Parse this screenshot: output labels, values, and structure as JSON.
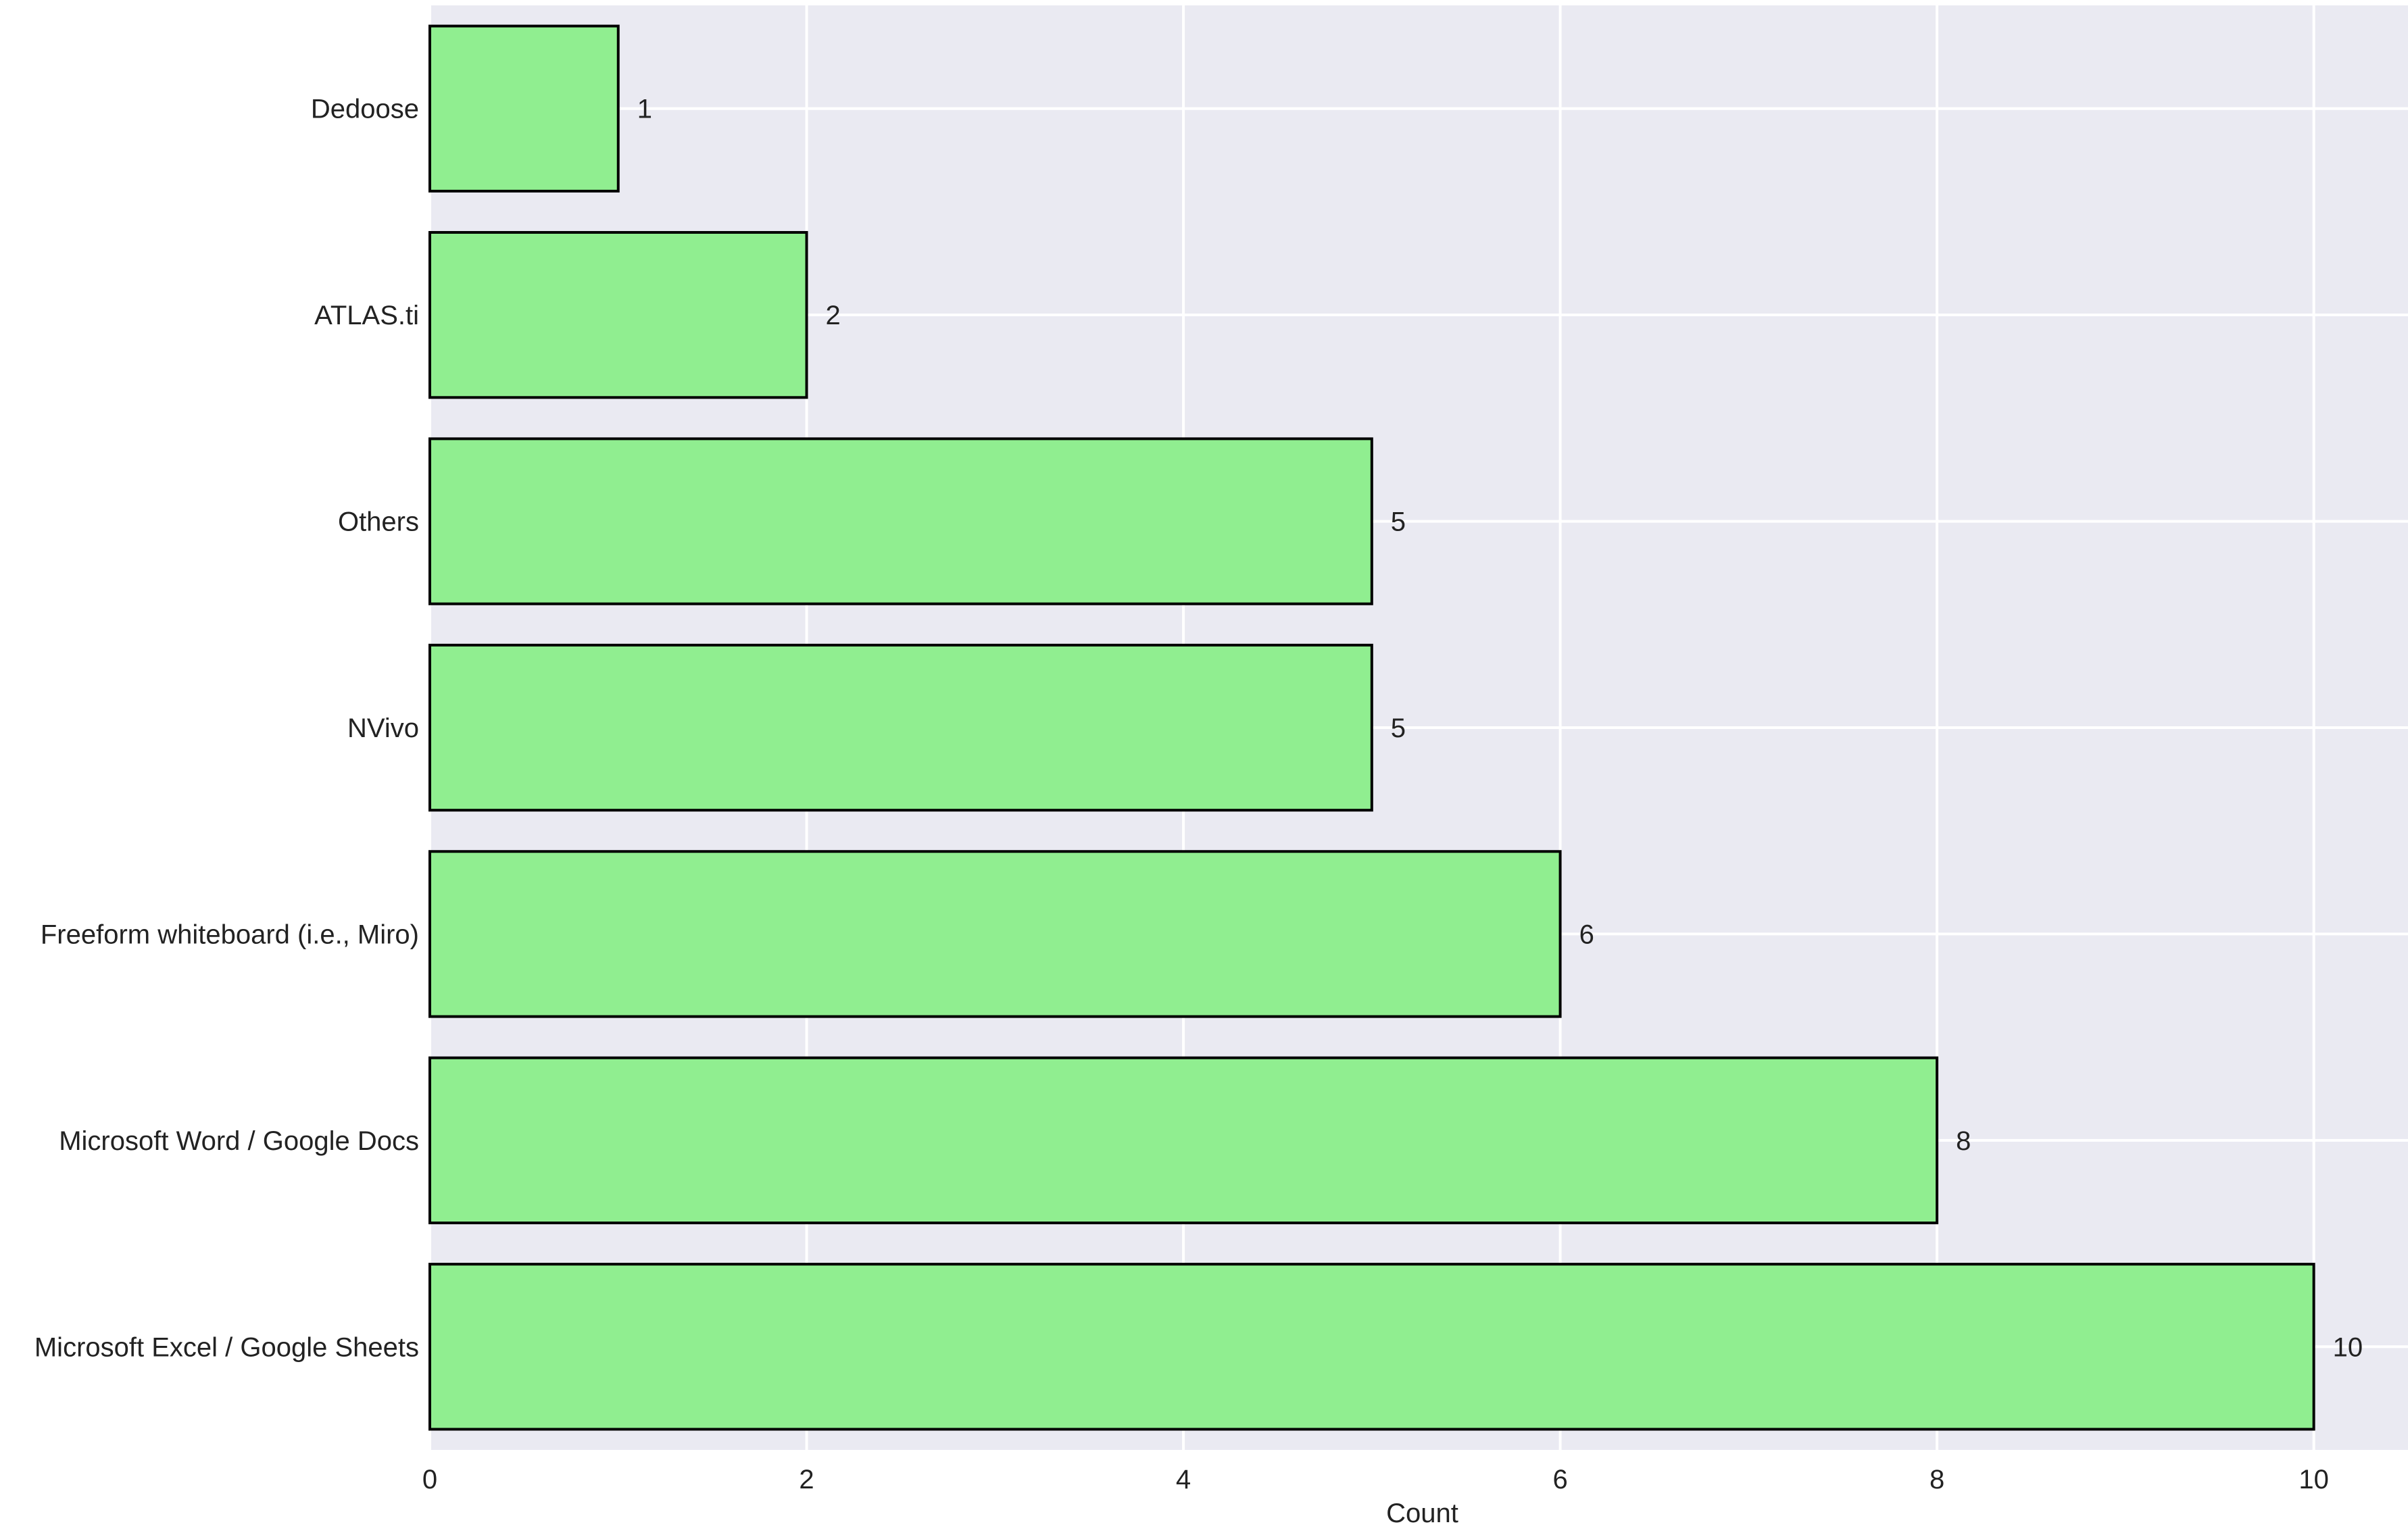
{
  "colors": {
    "plot_background": "#EAEAF2",
    "bar_fill": "#90EE90",
    "bar_edge": "#000000",
    "grid": "#FFFFFF",
    "text": "#222222"
  },
  "chart_data": {
    "type": "bar",
    "orientation": "horizontal",
    "categories": [
      "Dedoose",
      "ATLAS.ti",
      "Others",
      "NVivo",
      "Freeform whiteboard (i.e., Miro)",
      "Microsoft Word / Google Docs",
      "Microsoft Excel / Google Sheets"
    ],
    "values": [
      1,
      2,
      5,
      5,
      6,
      8,
      10
    ],
    "data_labels": [
      "1",
      "2",
      "5",
      "5",
      "6",
      "8",
      "10"
    ],
    "xlabel": "Count",
    "ylabel": "",
    "xlim": [
      0,
      10.5
    ],
    "xticks": [
      0,
      2,
      4,
      6,
      8,
      10
    ],
    "xtick_labels": [
      "0",
      "2",
      "4",
      "6",
      "8",
      "10"
    ],
    "grid": true,
    "legend": false
  }
}
